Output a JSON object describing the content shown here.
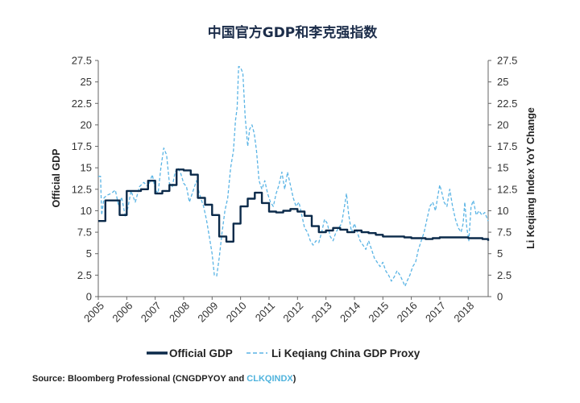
{
  "chart_data": {
    "type": "line",
    "title": "中国官方GDP和李克强指数",
    "ylabel_left": "Official GDP",
    "ylabel_right": "Li Keqiang Index YoY Change",
    "ylim": [
      0,
      27.5
    ],
    "yticks": [
      "0",
      "2.5",
      "5",
      "7.5",
      "10",
      "12.5",
      "15",
      "17.5",
      "20",
      "22.5",
      "25",
      "27.5"
    ],
    "xlim": [
      2005,
      2018.7
    ],
    "xticks": [
      "2005",
      "2006",
      "2007",
      "2008",
      "2009",
      "2010",
      "2011",
      "2012",
      "2013",
      "2014",
      "2015",
      "2016",
      "2017",
      "2018"
    ],
    "grid": false,
    "legend": "bottom",
    "colors": {
      "official": "#0b2a4a",
      "proxy": "#5ab4e5"
    },
    "series": [
      {
        "name": "Official GDP",
        "style": "solid",
        "points": [
          [
            2005.0,
            8.8
          ],
          [
            2005.2,
            8.8
          ],
          [
            2005.25,
            11.2
          ],
          [
            2005.7,
            11.2
          ],
          [
            2005.75,
            9.5
          ],
          [
            2005.95,
            9.5
          ],
          [
            2006.0,
            12.3
          ],
          [
            2006.5,
            12.5
          ],
          [
            2006.75,
            13.5
          ],
          [
            2007.0,
            12.0
          ],
          [
            2007.25,
            12.3
          ],
          [
            2007.5,
            13.0
          ],
          [
            2007.75,
            14.8
          ],
          [
            2008.0,
            14.7
          ],
          [
            2008.25,
            14.2
          ],
          [
            2008.5,
            11.5
          ],
          [
            2008.75,
            10.7
          ],
          [
            2009.0,
            9.5
          ],
          [
            2009.25,
            7.0
          ],
          [
            2009.5,
            6.4
          ],
          [
            2009.75,
            8.5
          ],
          [
            2010.0,
            10.5
          ],
          [
            2010.25,
            11.4
          ],
          [
            2010.5,
            12.1
          ],
          [
            2010.6,
            12.1
          ],
          [
            2010.75,
            10.9
          ],
          [
            2011.0,
            9.9
          ],
          [
            2011.25,
            9.8
          ],
          [
            2011.5,
            10.0
          ],
          [
            2011.75,
            10.2
          ],
          [
            2012.0,
            9.9
          ],
          [
            2012.25,
            9.4
          ],
          [
            2012.5,
            8.2
          ],
          [
            2012.75,
            7.5
          ],
          [
            2013.0,
            7.7
          ],
          [
            2013.25,
            8.0
          ],
          [
            2013.5,
            7.8
          ],
          [
            2013.75,
            7.5
          ],
          [
            2014.0,
            7.7
          ],
          [
            2014.25,
            7.5
          ],
          [
            2014.5,
            7.4
          ],
          [
            2014.75,
            7.2
          ],
          [
            2015.0,
            7.0
          ],
          [
            2015.5,
            7.0
          ],
          [
            2015.75,
            6.9
          ],
          [
            2016.0,
            6.8
          ],
          [
            2016.5,
            6.7
          ],
          [
            2016.75,
            6.8
          ],
          [
            2017.0,
            6.9
          ],
          [
            2017.5,
            6.9
          ],
          [
            2017.75,
            6.9
          ],
          [
            2018.0,
            6.8
          ],
          [
            2018.25,
            6.8
          ],
          [
            2018.5,
            6.7
          ],
          [
            2018.7,
            6.5
          ]
        ]
      },
      {
        "name": "Li Keqiang China GDP Proxy",
        "style": "dashed",
        "points": [
          [
            2005.0,
            14.0
          ],
          [
            2005.08,
            14.0
          ],
          [
            2005.12,
            9.5
          ],
          [
            2005.2,
            11.5
          ],
          [
            2005.3,
            11.8
          ],
          [
            2005.45,
            12.0
          ],
          [
            2005.6,
            12.4
          ],
          [
            2005.72,
            10.5
          ],
          [
            2005.82,
            11.6
          ],
          [
            2005.95,
            9.3
          ],
          [
            2006.05,
            10.5
          ],
          [
            2006.15,
            12.3
          ],
          [
            2006.3,
            11.0
          ],
          [
            2006.45,
            12.8
          ],
          [
            2006.6,
            13.3
          ],
          [
            2006.75,
            12.8
          ],
          [
            2006.9,
            14.2
          ],
          [
            2007.0,
            12.5
          ],
          [
            2007.1,
            12.0
          ],
          [
            2007.2,
            15.0
          ],
          [
            2007.3,
            17.3
          ],
          [
            2007.4,
            16.5
          ],
          [
            2007.5,
            13.2
          ],
          [
            2007.6,
            12.8
          ],
          [
            2007.7,
            14.5
          ],
          [
            2007.8,
            15.0
          ],
          [
            2007.9,
            14.3
          ],
          [
            2008.0,
            13.2
          ],
          [
            2008.1,
            12.8
          ],
          [
            2008.2,
            11.0
          ],
          [
            2008.3,
            12.0
          ],
          [
            2008.45,
            13.5
          ],
          [
            2008.55,
            12.0
          ],
          [
            2008.7,
            10.5
          ],
          [
            2008.8,
            9.0
          ],
          [
            2008.9,
            7.0
          ],
          [
            2009.0,
            5.0
          ],
          [
            2009.08,
            2.5
          ],
          [
            2009.16,
            2.4
          ],
          [
            2009.25,
            4.5
          ],
          [
            2009.35,
            7.5
          ],
          [
            2009.45,
            10.0
          ],
          [
            2009.55,
            11.5
          ],
          [
            2009.65,
            15.0
          ],
          [
            2009.75,
            17.0
          ],
          [
            2009.82,
            20.5
          ],
          [
            2009.88,
            22.0
          ],
          [
            2009.93,
            26.8
          ],
          [
            2010.0,
            26.7
          ],
          [
            2010.08,
            26.0
          ],
          [
            2010.16,
            21.0
          ],
          [
            2010.25,
            17.5
          ],
          [
            2010.32,
            19.5
          ],
          [
            2010.4,
            20.0
          ],
          [
            2010.48,
            19.0
          ],
          [
            2010.56,
            17.0
          ],
          [
            2010.65,
            13.5
          ],
          [
            2010.75,
            12.5
          ],
          [
            2010.85,
            13.5
          ],
          [
            2010.95,
            12.0
          ],
          [
            2011.05,
            11.0
          ],
          [
            2011.15,
            10.5
          ],
          [
            2011.25,
            12.0
          ],
          [
            2011.35,
            13.0
          ],
          [
            2011.45,
            14.5
          ],
          [
            2011.55,
            12.5
          ],
          [
            2011.65,
            14.5
          ],
          [
            2011.75,
            13.0
          ],
          [
            2011.85,
            11.5
          ],
          [
            2011.95,
            10.5
          ],
          [
            2012.05,
            11.0
          ],
          [
            2012.15,
            9.5
          ],
          [
            2012.25,
            8.0
          ],
          [
            2012.35,
            7.5
          ],
          [
            2012.45,
            6.5
          ],
          [
            2012.55,
            6.0
          ],
          [
            2012.65,
            6.5
          ],
          [
            2012.75,
            6.3
          ],
          [
            2012.85,
            7.5
          ],
          [
            2012.95,
            9.0
          ],
          [
            2013.05,
            8.5
          ],
          [
            2013.15,
            7.0
          ],
          [
            2013.25,
            6.5
          ],
          [
            2013.35,
            7.5
          ],
          [
            2013.45,
            8.0
          ],
          [
            2013.55,
            8.5
          ],
          [
            2013.65,
            10.5
          ],
          [
            2013.72,
            12.0
          ],
          [
            2013.8,
            9.5
          ],
          [
            2013.9,
            7.5
          ],
          [
            2014.0,
            8.5
          ],
          [
            2014.1,
            7.5
          ],
          [
            2014.2,
            6.5
          ],
          [
            2014.3,
            6.0
          ],
          [
            2014.4,
            5.5
          ],
          [
            2014.5,
            6.5
          ],
          [
            2014.6,
            5.5
          ],
          [
            2014.7,
            4.5
          ],
          [
            2014.8,
            4.0
          ],
          [
            2014.9,
            3.5
          ],
          [
            2015.0,
            4.0
          ],
          [
            2015.1,
            3.0
          ],
          [
            2015.2,
            2.5
          ],
          [
            2015.3,
            1.8
          ],
          [
            2015.4,
            2.3
          ],
          [
            2015.5,
            3.0
          ],
          [
            2015.6,
            2.5
          ],
          [
            2015.7,
            1.8
          ],
          [
            2015.78,
            1.2
          ],
          [
            2015.85,
            1.8
          ],
          [
            2015.95,
            2.5
          ],
          [
            2016.05,
            3.5
          ],
          [
            2016.15,
            4.0
          ],
          [
            2016.25,
            5.5
          ],
          [
            2016.35,
            6.5
          ],
          [
            2016.45,
            7.5
          ],
          [
            2016.55,
            9.0
          ],
          [
            2016.65,
            10.5
          ],
          [
            2016.75,
            11.0
          ],
          [
            2016.85,
            10.0
          ],
          [
            2016.92,
            11.5
          ],
          [
            2017.0,
            13.0
          ],
          [
            2017.08,
            12.0
          ],
          [
            2017.15,
            11.0
          ],
          [
            2017.25,
            10.5
          ],
          [
            2017.35,
            12.5
          ],
          [
            2017.45,
            10.5
          ],
          [
            2017.55,
            9.0
          ],
          [
            2017.65,
            8.0
          ],
          [
            2017.75,
            7.5
          ],
          [
            2017.82,
            8.5
          ],
          [
            2017.88,
            11.0
          ],
          [
            2017.95,
            8.0
          ],
          [
            2018.02,
            6.5
          ],
          [
            2018.1,
            10.5
          ],
          [
            2018.18,
            11.2
          ],
          [
            2018.28,
            9.5
          ],
          [
            2018.38,
            10.0
          ],
          [
            2018.48,
            9.5
          ],
          [
            2018.58,
            9.8
          ],
          [
            2018.7,
            8.8
          ]
        ]
      }
    ]
  },
  "source": {
    "prefix": "Source: Bloomberg Professional (CNGDPYOY and ",
    "highlight": "CLKQINDX",
    "suffix": ")"
  }
}
